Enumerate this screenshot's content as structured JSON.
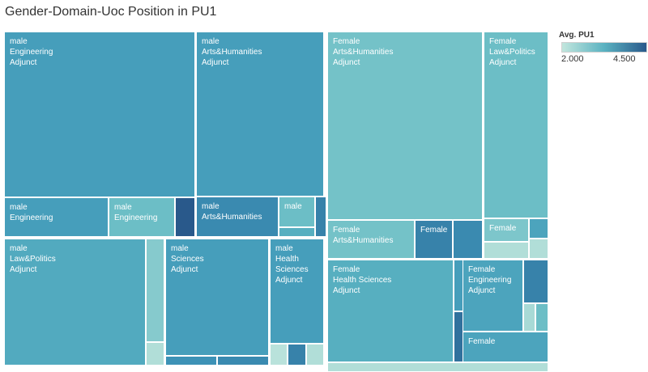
{
  "colors": {
    "low": "#c1e5dc",
    "high": "#2a5a8b"
  },
  "chart_data": {
    "type": "treemap",
    "title": "Gender-Domain-Uoc Position in PU1",
    "measure": "Avg. PU1",
    "color_range": [
      2.0,
      4.5
    ],
    "legend": {
      "title": "Avg. PU1",
      "min_label": "2.000",
      "max_label": "4.500",
      "placement": "top-right"
    },
    "tiles": [
      {
        "labels": [
          "male",
          "Engineering",
          "Adjunct"
        ],
        "value": 3.6
      },
      {
        "labels": [
          "male",
          "Engineering"
        ],
        "value": 3.6
      },
      {
        "labels": [
          "male",
          "Engineering"
        ],
        "value": 3.0
      },
      {
        "labels": [],
        "value": 4.5
      },
      {
        "labels": [
          "male",
          "Arts&Humanities",
          "Adjunct"
        ],
        "value": 3.6
      },
      {
        "labels": [
          "male",
          "Arts&Humanities"
        ],
        "value": 3.9
      },
      {
        "labels": [
          "male"
        ],
        "value": 3.0
      },
      {
        "labels": [],
        "value": 3.3
      },
      {
        "labels": [],
        "value": 4.0
      },
      {
        "labels": [
          "Female",
          "Arts&Humanities",
          "Adjunct"
        ],
        "value": 2.9
      },
      {
        "labels": [
          "Female",
          "Arts&Humanities"
        ],
        "value": 2.9
      },
      {
        "labels": [
          "Female"
        ],
        "value": 4.0
      },
      {
        "labels": [],
        "value": 3.9
      },
      {
        "labels": [
          "Female",
          "Law&Politics",
          "Adjunct"
        ],
        "value": 3.0
      },
      {
        "labels": [
          "Female"
        ],
        "value": 2.8
      },
      {
        "labels": [],
        "value": 3.5
      },
      {
        "labels": [],
        "value": 2.2
      },
      {
        "labels": [],
        "value": 2.2
      },
      {
        "labels": [
          "male",
          "Law&Politics",
          "Adjunct"
        ],
        "value": 3.4
      },
      {
        "labels": [],
        "value": 2.7
      },
      {
        "labels": [],
        "value": 2.2
      },
      {
        "labels": [
          "male",
          "Sciences",
          "Adjunct"
        ],
        "value": 3.6
      },
      {
        "labels": [],
        "value": 3.8
      },
      {
        "labels": [],
        "value": 3.9
      },
      {
        "labels": [
          "male",
          "Health",
          "Sciences",
          "Adjunct"
        ],
        "value": 3.6
      },
      {
        "labels": [],
        "value": 2.1
      },
      {
        "labels": [],
        "value": 4.0
      },
      {
        "labels": [],
        "value": 2.2
      },
      {
        "labels": [
          "Female",
          "Health Sciences",
          "Adjunct"
        ],
        "value": 3.3
      },
      {
        "labels": [],
        "value": 3.6
      },
      {
        "labels": [],
        "value": 4.2
      },
      {
        "labels": [],
        "value": 2.2
      },
      {
        "labels": [
          "Female",
          "Engineering",
          "Adjunct"
        ],
        "value": 3.5
      },
      {
        "labels": [],
        "value": 4.0
      },
      {
        "labels": [],
        "value": 2.3
      },
      {
        "labels": [],
        "value": 3.0
      },
      {
        "labels": [
          "Female"
        ],
        "value": 3.5
      }
    ]
  }
}
